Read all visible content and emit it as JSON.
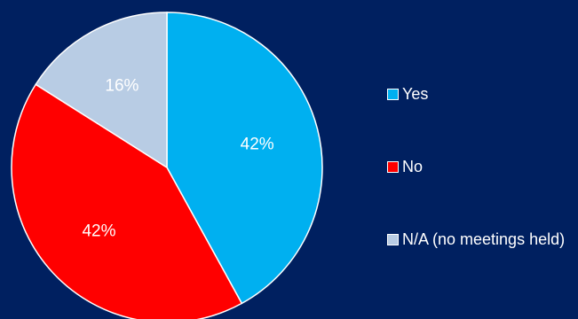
{
  "chart_data": {
    "type": "pie",
    "title": "",
    "categories": [
      "Yes",
      "No",
      "N/A (no meetings held)"
    ],
    "values": [
      42,
      42,
      16
    ],
    "value_labels": [
      "42%",
      "42%",
      "16%"
    ],
    "colors": [
      "#00b0f0",
      "#ff0000",
      "#b8cce4"
    ],
    "start_angle": "12 o'clock",
    "direction": "clockwise",
    "legend": {
      "position": "right",
      "items": [
        {
          "label": "Yes",
          "color": "#00b0f0"
        },
        {
          "label": "No",
          "color": "#ff0000"
        },
        {
          "label": "N/A (no meetings held)",
          "color": "#b8cce4"
        }
      ]
    }
  },
  "background_color": "#002060"
}
